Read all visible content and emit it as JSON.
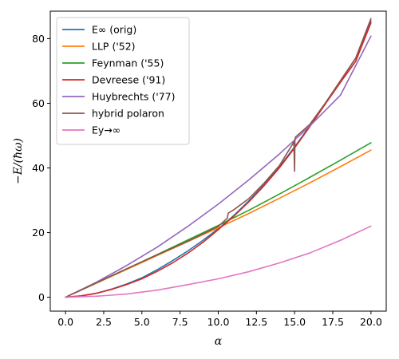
{
  "chart_data": {
    "type": "line",
    "title": "",
    "xlabel": "α",
    "ylabel": "−E/(ħω)",
    "xlim": [
      -1.0,
      21.0
    ],
    "ylim": [
      -4.3,
      88.5
    ],
    "xticks": [
      0.0,
      2.5,
      5.0,
      7.5,
      10.0,
      12.5,
      15.0,
      17.5,
      20.0
    ],
    "xtick_labels": [
      "0.0",
      "2.5",
      "5.0",
      "7.5",
      "10.0",
      "12.5",
      "15.0",
      "17.5",
      "20.0"
    ],
    "yticks": [
      0,
      20,
      40,
      60,
      80
    ],
    "ytick_labels": [
      "0",
      "20",
      "40",
      "60",
      "80"
    ],
    "grid": false,
    "legend_position": "top-left",
    "series": [
      {
        "name": "E∞ (orig)",
        "color": "#1f77b4",
        "x": [
          0,
          1,
          2,
          3,
          4,
          5,
          6,
          7,
          8,
          9,
          10,
          11,
          12,
          13,
          14,
          15,
          16,
          17,
          18,
          19,
          20
        ],
        "y": [
          0,
          0.4,
          1.2,
          2.5,
          4.1,
          6.0,
          8.5,
          11.3,
          14.3,
          17.6,
          21.2,
          25.2,
          29.8,
          34.8,
          40.3,
          46.5,
          53.0,
          59.8,
          66.5,
          73.0,
          85.5
        ]
      },
      {
        "name": "LLP ('52)",
        "color": "#ff7f0e",
        "x": [
          0,
          2,
          4,
          6,
          8,
          10,
          12,
          14,
          16,
          18,
          20
        ],
        "y": [
          0,
          4.3,
          8.6,
          12.9,
          17.2,
          21.5,
          25.9,
          30.6,
          35.4,
          40.4,
          45.5
        ]
      },
      {
        "name": "Feynman ('55)",
        "color": "#2ca02c",
        "x": [
          0,
          2,
          4,
          6,
          8,
          10,
          12,
          14,
          16,
          18,
          20
        ],
        "y": [
          0,
          4.4,
          8.8,
          13.2,
          17.7,
          22.2,
          26.9,
          31.9,
          37.1,
          42.4,
          47.8
        ]
      },
      {
        "name": "Devreese ('91)",
        "color": "#d62728",
        "x": [
          0,
          1,
          2,
          3,
          4,
          5,
          6,
          7,
          8,
          9,
          10,
          11,
          12,
          13,
          14,
          15,
          16,
          17,
          18,
          19,
          20
        ],
        "y": [
          0,
          0.4,
          1.2,
          2.4,
          3.9,
          5.7,
          8.0,
          10.6,
          13.6,
          17.0,
          20.9,
          25.0,
          29.5,
          34.5,
          40.0,
          46.2,
          52.8,
          59.7,
          66.5,
          73.0,
          84.9
        ]
      },
      {
        "name": "Huybrechts ('77)",
        "color": "#9467bd",
        "x": [
          0,
          2,
          4,
          6,
          8,
          10,
          12,
          14,
          16,
          18,
          20
        ],
        "y": [
          0,
          4.6,
          9.8,
          15.5,
          21.9,
          28.8,
          36.3,
          44.3,
          53.0,
          62.5,
          80.8
        ]
      },
      {
        "name": "hybrid polaron",
        "color": "#8c564b",
        "x": [
          0,
          2,
          4,
          6,
          8,
          10,
          10.6,
          10.65,
          11,
          12,
          13,
          14,
          14.95,
          15.0,
          15.02,
          15.05,
          16,
          17,
          18,
          19,
          20
        ],
        "y": [
          0,
          4.4,
          8.8,
          13.1,
          17.3,
          21.9,
          24.5,
          26.0,
          27.0,
          30.5,
          35.3,
          40.7,
          48.0,
          39.0,
          48.5,
          49.5,
          53.5,
          60.0,
          67.0,
          74.0,
          86.2
        ]
      },
      {
        "name": "Ey→∞",
        "color": "#e377c2",
        "x": [
          0,
          2,
          4,
          6,
          8,
          10,
          12,
          14,
          16,
          18,
          20
        ],
        "y": [
          0,
          0.3,
          1.0,
          2.2,
          3.9,
          5.7,
          7.9,
          10.6,
          13.7,
          17.6,
          22.0
        ]
      }
    ]
  }
}
